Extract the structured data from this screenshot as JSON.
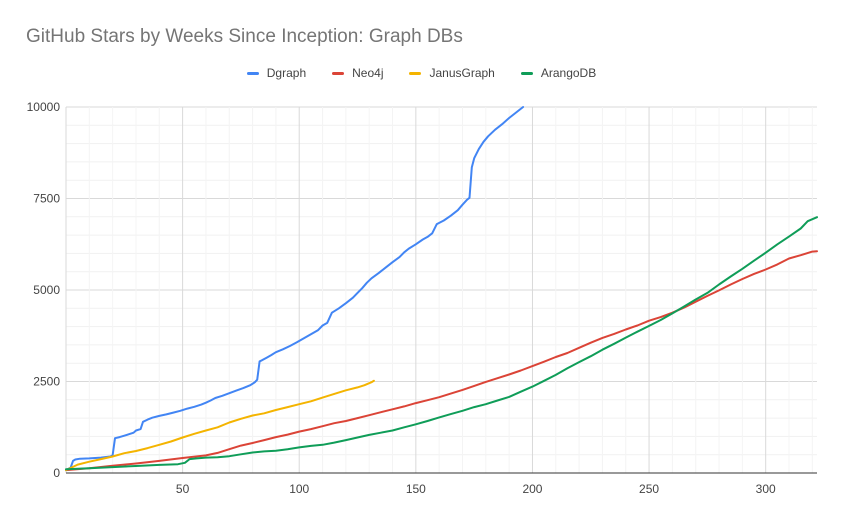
{
  "chart_data": {
    "type": "line",
    "title": "GitHub Stars by Weeks Since Inception: Graph DBs",
    "xlabel": "",
    "ylabel": "",
    "xlim": [
      0,
      322
    ],
    "ylim": [
      0,
      10000
    ],
    "x_ticks": [
      50,
      100,
      150,
      200,
      250,
      300
    ],
    "y_ticks": [
      0,
      2500,
      5000,
      7500,
      10000
    ],
    "x_tick_labels": [
      "50",
      "100",
      "150",
      "200",
      "250",
      "300"
    ],
    "y_tick_labels": [
      "0",
      "2500",
      "5000",
      "7500",
      "10000"
    ],
    "grid": true,
    "legend_position": "top",
    "series": [
      {
        "name": "Dgraph",
        "color": "#4285f4",
        "points": [
          [
            0,
            80
          ],
          [
            2,
            150
          ],
          [
            3,
            330
          ],
          [
            4,
            370
          ],
          [
            6,
            390
          ],
          [
            10,
            400
          ],
          [
            15,
            420
          ],
          [
            19,
            450
          ],
          [
            20,
            480
          ],
          [
            21,
            950
          ],
          [
            23,
            980
          ],
          [
            25,
            1020
          ],
          [
            27,
            1060
          ],
          [
            29,
            1100
          ],
          [
            30,
            1160
          ],
          [
            32,
            1200
          ],
          [
            33,
            1400
          ],
          [
            35,
            1460
          ],
          [
            37,
            1510
          ],
          [
            40,
            1560
          ],
          [
            43,
            1600
          ],
          [
            46,
            1650
          ],
          [
            49,
            1700
          ],
          [
            52,
            1760
          ],
          [
            55,
            1810
          ],
          [
            58,
            1870
          ],
          [
            60,
            1920
          ],
          [
            62,
            1980
          ],
          [
            64,
            2050
          ],
          [
            67,
            2110
          ],
          [
            70,
            2180
          ],
          [
            73,
            2250
          ],
          [
            76,
            2320
          ],
          [
            79,
            2400
          ],
          [
            81,
            2480
          ],
          [
            82,
            2550
          ],
          [
            83,
            3050
          ],
          [
            84,
            3080
          ],
          [
            86,
            3150
          ],
          [
            88,
            3220
          ],
          [
            90,
            3300
          ],
          [
            93,
            3380
          ],
          [
            96,
            3470
          ],
          [
            99,
            3570
          ],
          [
            102,
            3680
          ],
          [
            105,
            3790
          ],
          [
            108,
            3900
          ],
          [
            110,
            4030
          ],
          [
            112,
            4100
          ],
          [
            114,
            4380
          ],
          [
            117,
            4500
          ],
          [
            120,
            4640
          ],
          [
            123,
            4790
          ],
          [
            125,
            4920
          ],
          [
            127,
            5050
          ],
          [
            129,
            5200
          ],
          [
            131,
            5320
          ],
          [
            134,
            5460
          ],
          [
            137,
            5610
          ],
          [
            140,
            5760
          ],
          [
            143,
            5900
          ],
          [
            145,
            6030
          ],
          [
            147,
            6130
          ],
          [
            150,
            6250
          ],
          [
            153,
            6380
          ],
          [
            155,
            6450
          ],
          [
            157,
            6550
          ],
          [
            159,
            6800
          ],
          [
            162,
            6900
          ],
          [
            165,
            7030
          ],
          [
            168,
            7180
          ],
          [
            170,
            7330
          ],
          [
            172,
            7470
          ],
          [
            173,
            7520
          ],
          [
            174,
            8350
          ],
          [
            175,
            8600
          ],
          [
            177,
            8850
          ],
          [
            179,
            9050
          ],
          [
            181,
            9200
          ],
          [
            184,
            9380
          ],
          [
            187,
            9530
          ],
          [
            190,
            9700
          ],
          [
            193,
            9850
          ],
          [
            196,
            10000
          ]
        ]
      },
      {
        "name": "Neo4j",
        "color": "#db4437",
        "points": [
          [
            0,
            80
          ],
          [
            10,
            130
          ],
          [
            20,
            200
          ],
          [
            30,
            260
          ],
          [
            40,
            330
          ],
          [
            50,
            410
          ],
          [
            60,
            480
          ],
          [
            65,
            550
          ],
          [
            70,
            650
          ],
          [
            75,
            750
          ],
          [
            80,
            820
          ],
          [
            85,
            900
          ],
          [
            90,
            980
          ],
          [
            95,
            1050
          ],
          [
            100,
            1130
          ],
          [
            105,
            1200
          ],
          [
            110,
            1280
          ],
          [
            115,
            1360
          ],
          [
            120,
            1420
          ],
          [
            125,
            1500
          ],
          [
            130,
            1580
          ],
          [
            135,
            1660
          ],
          [
            140,
            1740
          ],
          [
            145,
            1820
          ],
          [
            150,
            1910
          ],
          [
            155,
            1990
          ],
          [
            160,
            2070
          ],
          [
            165,
            2170
          ],
          [
            170,
            2270
          ],
          [
            175,
            2380
          ],
          [
            180,
            2490
          ],
          [
            185,
            2590
          ],
          [
            190,
            2690
          ],
          [
            195,
            2800
          ],
          [
            200,
            2920
          ],
          [
            205,
            3040
          ],
          [
            210,
            3170
          ],
          [
            215,
            3280
          ],
          [
            220,
            3420
          ],
          [
            225,
            3560
          ],
          [
            230,
            3690
          ],
          [
            235,
            3800
          ],
          [
            240,
            3920
          ],
          [
            245,
            4030
          ],
          [
            250,
            4160
          ],
          [
            255,
            4260
          ],
          [
            260,
            4380
          ],
          [
            265,
            4520
          ],
          [
            270,
            4680
          ],
          [
            275,
            4840
          ],
          [
            280,
            4990
          ],
          [
            285,
            5150
          ],
          [
            290,
            5300
          ],
          [
            295,
            5440
          ],
          [
            300,
            5560
          ],
          [
            305,
            5700
          ],
          [
            310,
            5860
          ],
          [
            315,
            5950
          ],
          [
            320,
            6050
          ],
          [
            322,
            6060
          ]
        ]
      },
      {
        "name": "JanusGraph",
        "color": "#f4b400",
        "points": [
          [
            0,
            80
          ],
          [
            5,
            230
          ],
          [
            10,
            310
          ],
          [
            15,
            380
          ],
          [
            20,
            450
          ],
          [
            25,
            540
          ],
          [
            30,
            600
          ],
          [
            35,
            680
          ],
          [
            40,
            770
          ],
          [
            45,
            860
          ],
          [
            50,
            970
          ],
          [
            55,
            1070
          ],
          [
            60,
            1160
          ],
          [
            65,
            1250
          ],
          [
            70,
            1380
          ],
          [
            75,
            1480
          ],
          [
            80,
            1570
          ],
          [
            85,
            1630
          ],
          [
            90,
            1720
          ],
          [
            95,
            1800
          ],
          [
            100,
            1880
          ],
          [
            105,
            1960
          ],
          [
            110,
            2060
          ],
          [
            115,
            2160
          ],
          [
            120,
            2260
          ],
          [
            125,
            2340
          ],
          [
            128,
            2400
          ],
          [
            131,
            2480
          ],
          [
            132,
            2520
          ]
        ]
      },
      {
        "name": "ArangoDB",
        "color": "#0f9d58",
        "points": [
          [
            0,
            100
          ],
          [
            10,
            130
          ],
          [
            20,
            160
          ],
          [
            30,
            190
          ],
          [
            40,
            220
          ],
          [
            48,
            240
          ],
          [
            51,
            280
          ],
          [
            53,
            380
          ],
          [
            56,
            400
          ],
          [
            60,
            420
          ],
          [
            65,
            430
          ],
          [
            70,
            460
          ],
          [
            75,
            510
          ],
          [
            80,
            560
          ],
          [
            85,
            590
          ],
          [
            90,
            610
          ],
          [
            95,
            650
          ],
          [
            100,
            700
          ],
          [
            105,
            740
          ],
          [
            110,
            770
          ],
          [
            115,
            830
          ],
          [
            120,
            900
          ],
          [
            125,
            970
          ],
          [
            130,
            1040
          ],
          [
            135,
            1100
          ],
          [
            140,
            1160
          ],
          [
            145,
            1250
          ],
          [
            150,
            1330
          ],
          [
            155,
            1420
          ],
          [
            160,
            1520
          ],
          [
            165,
            1610
          ],
          [
            170,
            1700
          ],
          [
            175,
            1800
          ],
          [
            180,
            1880
          ],
          [
            185,
            1980
          ],
          [
            190,
            2080
          ],
          [
            195,
            2220
          ],
          [
            200,
            2360
          ],
          [
            205,
            2520
          ],
          [
            210,
            2680
          ],
          [
            215,
            2860
          ],
          [
            220,
            3030
          ],
          [
            225,
            3190
          ],
          [
            230,
            3370
          ],
          [
            235,
            3530
          ],
          [
            240,
            3700
          ],
          [
            245,
            3860
          ],
          [
            250,
            4020
          ],
          [
            255,
            4180
          ],
          [
            260,
            4360
          ],
          [
            265,
            4550
          ],
          [
            270,
            4740
          ],
          [
            275,
            4920
          ],
          [
            280,
            5150
          ],
          [
            285,
            5370
          ],
          [
            290,
            5580
          ],
          [
            295,
            5800
          ],
          [
            300,
            6020
          ],
          [
            305,
            6250
          ],
          [
            310,
            6460
          ],
          [
            315,
            6680
          ],
          [
            318,
            6880
          ],
          [
            322,
            6990
          ]
        ]
      }
    ]
  }
}
